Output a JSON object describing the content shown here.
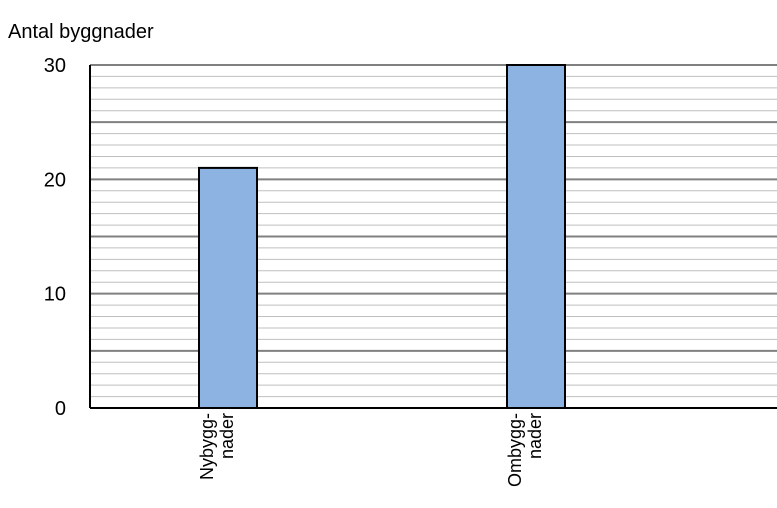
{
  "chart_data": {
    "type": "bar",
    "ylabel": "Antal byggnader",
    "xlabel": "",
    "categories": [
      [
        "Nybygg-",
        "nader"
      ],
      [
        "Ombygg-",
        "nader"
      ]
    ],
    "values": [
      21,
      30
    ],
    "ylim": [
      0,
      30
    ],
    "yticks": [
      "0",
      "10",
      "20",
      "30"
    ],
    "major_gridlines": [
      5,
      10,
      15,
      20,
      25,
      30
    ],
    "minor_grid_step": 1,
    "grid": true,
    "bar_color": "#8db3e2",
    "bar_edge_color": "#000000",
    "grid_color": "#808080",
    "minor_grid_color": "#bfbfbf"
  }
}
